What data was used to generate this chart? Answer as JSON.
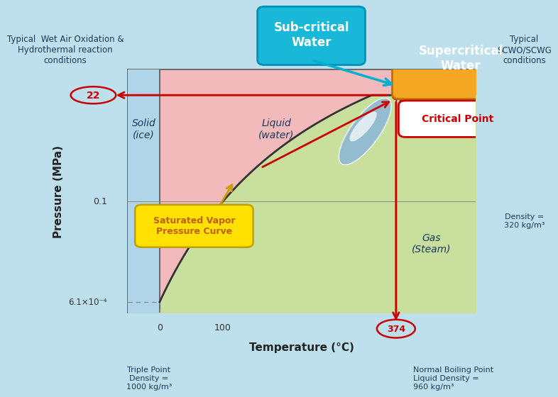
{
  "bg_color": "#bde0ec",
  "plot_bg_color": "#cce6f4",
  "xlabel": "Temperature (°C)",
  "ylabel": "Pressure (MPa)",
  "critical_temp": 374,
  "critical_pressure": 22.1,
  "triple_temp": 0.01,
  "triple_pressure": 0.000611,
  "boiling_temp": 100,
  "boiling_pressure": 0.1,
  "color_solid": "#b0d4e8",
  "color_liquid": "#f2baba",
  "color_gas": "#c8df9e",
  "color_supercritical": "#f5a623",
  "color_curve": "#c8a000",
  "color_red": "#cc0000",
  "color_cyan_arrow": "#00b0d0",
  "color_text_dark": "#1a3a5c",
  "pressure_22": "22",
  "pressure_01": "0.1",
  "pressure_triple": "6.1×10⁻⁴",
  "temp_0": "0",
  "temp_100": "100",
  "temp_374": "374",
  "label_solid": "Solid\n(ice)",
  "label_liquid": "Liquid\n(water)",
  "label_gas": "Gas\n(Steam)",
  "label_subcritical": "Sub-critical\nWater",
  "label_supercritical": "Supercritical\nWater",
  "label_critical": "Critical Point",
  "label_svp": "Saturated Vapor\nPressure Curve",
  "label_triple": "Triple Point\nDensity =\n1000 kg/m³",
  "label_density": "Density =\n320 kg/m³",
  "label_boiling": "Normal Boiling Point\nLiquid Density =\n960 kg/m³",
  "label_typical_wet": "Typical  Wet Air Oxidation &\nHydrothermal reaction\nconditions",
  "label_typical_scwo": "Typical\nSCWO/SCWG\nconditions"
}
